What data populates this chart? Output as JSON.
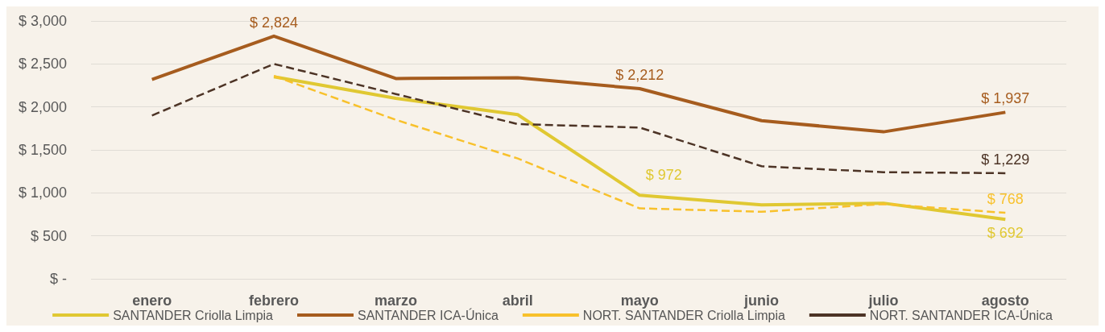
{
  "chart_data": {
    "type": "line",
    "categories": [
      "enero",
      "febrero",
      "marzo",
      "abril",
      "mayo",
      "junio",
      "julio",
      "agosto"
    ],
    "ylim": [
      0,
      3000
    ],
    "yticks": [
      {
        "value": 0,
        "label": "$ -"
      },
      {
        "value": 500,
        "label": "$ 500"
      },
      {
        "value": 1000,
        "label": "$ 1,000"
      },
      {
        "value": 1500,
        "label": "$ 1,500"
      },
      {
        "value": 2000,
        "label": "$ 2,000"
      },
      {
        "value": 2500,
        "label": "$ 2,500"
      },
      {
        "value": 3000,
        "label": "$ 3,000"
      }
    ],
    "grid": "y",
    "legend": "bottom",
    "marker": "none",
    "series": [
      {
        "name": "SANTANDER Criolla Limpia",
        "color": "#e0c832",
        "line_style": "solid",
        "values": [
          null,
          2350,
          2100,
          1910,
          972,
          860,
          880,
          692
        ],
        "value_labels": [
          null,
          null,
          null,
          null,
          "$ 972",
          null,
          null,
          "$ 692"
        ]
      },
      {
        "name": "SANTANDER ICA-Única",
        "color": "#a65c1e",
        "line_style": "solid",
        "values": [
          2320,
          2824,
          2330,
          2340,
          2212,
          1840,
          1710,
          1937
        ],
        "value_labels": [
          null,
          "$ 2,824",
          null,
          null,
          "$ 2,212",
          null,
          null,
          "$ 1,937"
        ]
      },
      {
        "name": "NORT. SANTANDER Criolla Limpia",
        "color": "#f8c12c",
        "line_style": "dashed",
        "values": [
          null,
          2360,
          1850,
          1400,
          820,
          780,
          870,
          768
        ],
        "value_labels": [
          null,
          null,
          null,
          null,
          null,
          null,
          null,
          "$ 768"
        ]
      },
      {
        "name": "NORT. SANTANDER ICA-Única",
        "color": "#4d3426",
        "line_style": "dashed",
        "values": [
          1900,
          2500,
          2150,
          1800,
          1760,
          1310,
          1240,
          1229
        ],
        "value_labels": [
          null,
          null,
          null,
          null,
          null,
          null,
          null,
          "$ 1,229"
        ]
      }
    ]
  }
}
